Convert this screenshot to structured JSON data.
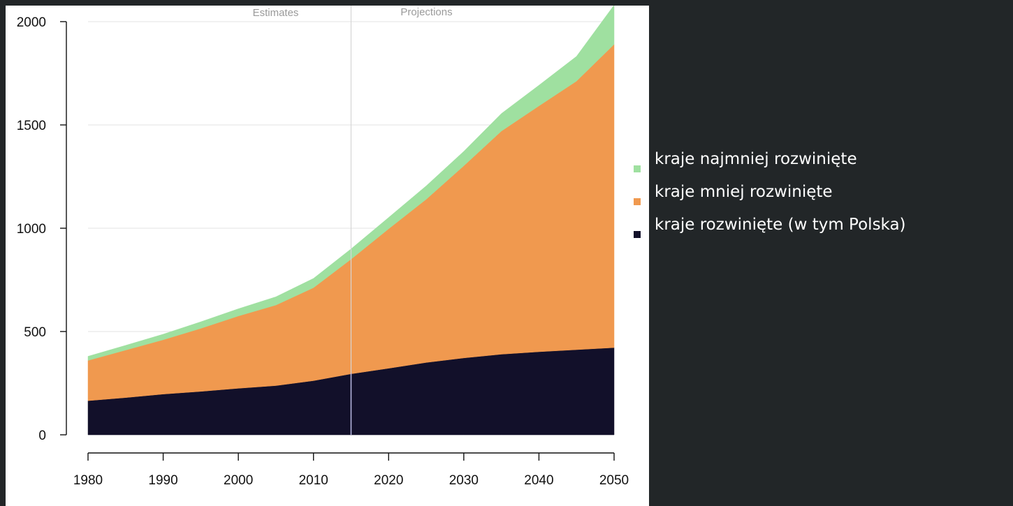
{
  "colors": {
    "least_developed": "#9fe0a0",
    "less_developed": "#f0994f",
    "developed": "#12102a",
    "projection_line": "#b9b9e6",
    "background": "#222628"
  },
  "legend": {
    "items": [
      {
        "label": "kraje najmniej rozwinięte",
        "color": "#9fe0a0"
      },
      {
        "label": "kraje mniej rozwinięte",
        "color": "#f0994f"
      },
      {
        "label": "kraje rozwinięte (w tym Polska)",
        "color": "#12102a"
      }
    ]
  },
  "chart_data": {
    "type": "area",
    "stacked": true,
    "title": "",
    "xlabel": "",
    "ylabel": "",
    "x": [
      1980,
      1985,
      1990,
      1995,
      2000,
      2005,
      2010,
      2015,
      2020,
      2025,
      2030,
      2035,
      2040,
      2045,
      2050
    ],
    "series": [
      {
        "name": "kraje rozwinięte (w tym Polska)",
        "values": [
          165,
          180,
          197,
          210,
          225,
          238,
          262,
          295,
          322,
          350,
          372,
          390,
          402,
          412,
          422
        ]
      },
      {
        "name": "kraje mniej rozwinięte",
        "values": [
          195,
          230,
          263,
          305,
          350,
          390,
          450,
          555,
          675,
          790,
          930,
          1080,
          1190,
          1300,
          1468
        ]
      },
      {
        "name": "kraje najmniej rozwinięte",
        "values": [
          20,
          23,
          27,
          32,
          35,
          40,
          45,
          50,
          55,
          65,
          70,
          85,
          100,
          120,
          190
        ]
      }
    ],
    "xlim": [
      1980,
      2050
    ],
    "ylim": [
      0,
      2000
    ],
    "x_ticks": [
      1980,
      1990,
      2000,
      2010,
      2020,
      2030,
      2040,
      2050
    ],
    "y_ticks": [
      0,
      500,
      1000,
      1500,
      2000
    ],
    "divider_x": 2015,
    "annotations": [
      "Estimates",
      "Projections"
    ],
    "grid": true,
    "legend_position": "right"
  }
}
